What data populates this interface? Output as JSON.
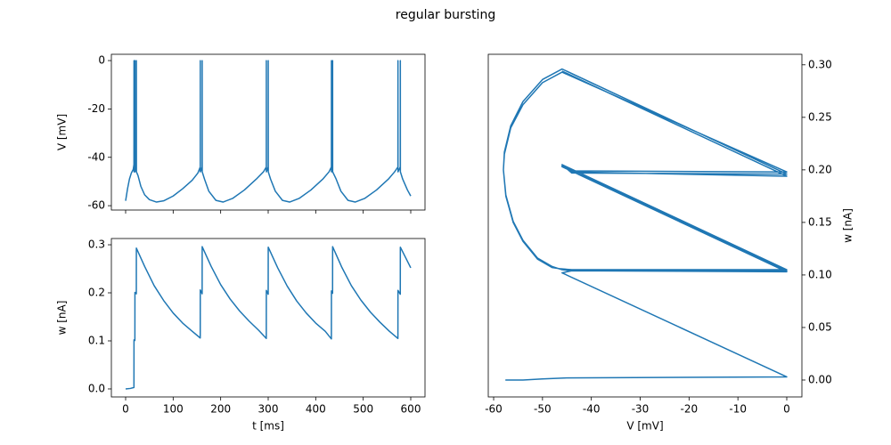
{
  "title": "regular bursting",
  "chart_data": [
    {
      "type": "line",
      "ylabel": "V [mV]",
      "xlim": [
        -30,
        630
      ],
      "ylim": [
        -61.8,
        2.6
      ],
      "yticks": [
        0,
        -20,
        -40,
        -60
      ],
      "color": "#1f77b4",
      "shared_x": true,
      "x": [
        0,
        4,
        8,
        12,
        16,
        17.5,
        17.6,
        17.7,
        19.5,
        19.6,
        19.7,
        22.5,
        22.6,
        22.7,
        26,
        32,
        40,
        50,
        65,
        80,
        100,
        120,
        140,
        152,
        157,
        157.1,
        157.2,
        161,
        161.1,
        161.2,
        166,
        175,
        190,
        205,
        225,
        250,
        275,
        290,
        296,
        296.1,
        296.2,
        300,
        300.1,
        300.2,
        305,
        315,
        330,
        345,
        365,
        390,
        415,
        428,
        433,
        433.1,
        433.2,
        435.5,
        435.6,
        435.7,
        443,
        453,
        468,
        483,
        503,
        528,
        553,
        566,
        573,
        573.1,
        573.2,
        578,
        578.1,
        578.2,
        583,
        593,
        600
      ],
      "values": [
        -58,
        -53,
        -49,
        -46.5,
        -45,
        -43,
        0,
        -46,
        -44,
        0,
        -46,
        -44,
        0,
        -46,
        -47.5,
        -52,
        -55.5,
        -57.5,
        -58.5,
        -58,
        -56,
        -53,
        -49.5,
        -46.5,
        -44,
        0,
        -46,
        -44,
        0,
        -46,
        -49,
        -54,
        -57.8,
        -58.5,
        -57,
        -53.5,
        -49,
        -46,
        -44,
        0,
        -46,
        -44,
        0,
        -46,
        -49,
        -54,
        -57.8,
        -58.5,
        -57,
        -53.5,
        -49,
        -46,
        -44,
        0,
        -46,
        -44,
        0,
        -46,
        -49,
        -54,
        -57.8,
        -58.5,
        -57,
        -53.5,
        -49,
        -46,
        -44,
        0,
        -46,
        -44,
        0,
        -46,
        -49,
        -53.5,
        -56
      ]
    },
    {
      "type": "line",
      "xlabel": "t [ms]",
      "ylabel": "w [nA]",
      "xlim": [
        -30,
        630
      ],
      "ylim": [
        -0.0167,
        0.313
      ],
      "xticks": [
        0,
        100,
        200,
        300,
        400,
        500,
        600
      ],
      "yticks": [
        {
          "value": 0,
          "label": "0.0"
        },
        0.1,
        0.2,
        0.3
      ],
      "color": "#1f77b4",
      "x": [
        0,
        10,
        17.5,
        17.6,
        19.5,
        19.6,
        22.5,
        22.6,
        40,
        60,
        80,
        100,
        120,
        140,
        157,
        157.1,
        161,
        161.1,
        180,
        200,
        220,
        240,
        260,
        280,
        296,
        296.1,
        300,
        300.1,
        320,
        340,
        360,
        380,
        400,
        420,
        433,
        433.1,
        435.5,
        435.6,
        455,
        475,
        495,
        515,
        535,
        555,
        573,
        573.1,
        578,
        578.1,
        600
      ],
      "values": [
        0,
        0.001,
        0.003,
        0.102,
        0.101,
        0.201,
        0.198,
        0.293,
        0.255,
        0.215,
        0.184,
        0.158,
        0.137,
        0.12,
        0.106,
        0.206,
        0.198,
        0.296,
        0.255,
        0.217,
        0.187,
        0.162,
        0.141,
        0.122,
        0.105,
        0.205,
        0.197,
        0.295,
        0.252,
        0.214,
        0.183,
        0.158,
        0.137,
        0.12,
        0.104,
        0.204,
        0.199,
        0.296,
        0.253,
        0.215,
        0.185,
        0.16,
        0.139,
        0.12,
        0.105,
        0.205,
        0.197,
        0.295,
        0.252
      ]
    },
    {
      "type": "line",
      "xlabel": "V [mV]",
      "ylabel": "w [nA]",
      "y_axis_side": "right",
      "xlim": [
        -61.1,
        3.1
      ],
      "ylim": [
        -0.0161,
        0.31
      ],
      "xticks": [
        -60,
        -50,
        -40,
        -30,
        -20,
        -10,
        0
      ],
      "yticks": [
        {
          "value": 0,
          "label": "0.00"
        },
        0.05,
        {
          "value": 0.1,
          "label": "0.10"
        },
        0.15,
        {
          "value": 0.2,
          "label": "0.20"
        },
        0.25,
        {
          "value": 0.3,
          "label": "0.30"
        }
      ],
      "color": "#1f77b4",
      "x": [
        -57.6,
        -54,
        -50,
        -45,
        0,
        -46,
        -44,
        0,
        -46,
        -44,
        0,
        -46,
        -50,
        -54,
        -56.5,
        -57.8,
        -58,
        -57.5,
        -56,
        -54,
        -51,
        -48,
        -46.5,
        -44,
        0,
        -46,
        -44,
        0,
        -46,
        -50,
        -54,
        -56.5,
        -57.8,
        -58,
        -57.5,
        -56,
        -54,
        -51,
        -48,
        -46,
        -44,
        0,
        -46,
        -44,
        0,
        -46
      ],
      "values": [
        0,
        0,
        0.001,
        0.002,
        0.003,
        0.102,
        0.104,
        0.103,
        0.203,
        0.199,
        0.198,
        0.293,
        0.283,
        0.262,
        0.24,
        0.215,
        0.2,
        0.175,
        0.15,
        0.132,
        0.115,
        0.107,
        0.106,
        0.105,
        0.105,
        0.205,
        0.197,
        0.196,
        0.296,
        0.286,
        0.265,
        0.242,
        0.217,
        0.2,
        0.176,
        0.151,
        0.133,
        0.116,
        0.108,
        0.105,
        0.104,
        0.104,
        0.204,
        0.198,
        0.194,
        0.294
      ]
    }
  ]
}
